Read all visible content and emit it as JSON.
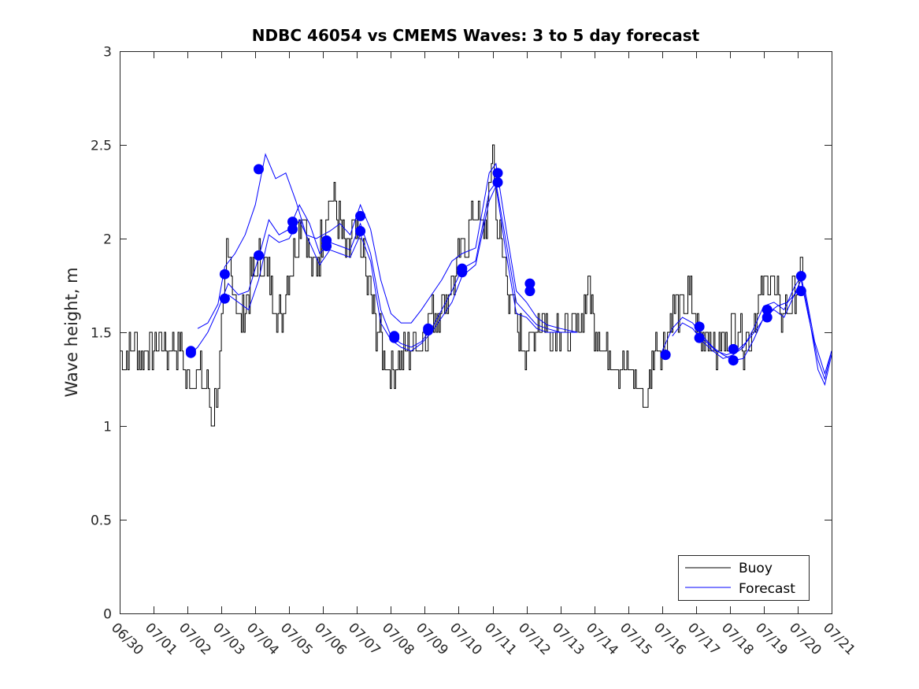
{
  "chart_data": {
    "type": "line",
    "title": "NDBC 46054 vs CMEMS Waves: 3 to 5 day forecast",
    "xlabel": "",
    "ylabel": "Wave height, m",
    "xlim": [
      0,
      21
    ],
    "ylim": [
      0,
      3
    ],
    "x_tick_labels": [
      "06/30",
      "07/01",
      "07/02",
      "07/03",
      "07/04",
      "07/05",
      "07/06",
      "07/07",
      "07/08",
      "07/09",
      "07/10",
      "07/11",
      "07/12",
      "07/13",
      "07/14",
      "07/15",
      "07/16",
      "07/17",
      "07/18",
      "07/19",
      "07/20",
      "07/21"
    ],
    "y_ticks": [
      0,
      0.5,
      1,
      1.5,
      2,
      2.5,
      3
    ],
    "y_tick_labels": [
      "0",
      "0.5",
      "1",
      "1.5",
      "2",
      "2.5",
      "3"
    ],
    "legend": {
      "position": "bottom-right",
      "entries": [
        {
          "label": "Buoy",
          "color": "#000000"
        },
        {
          "label": "Forecast",
          "color": "#0000ff"
        }
      ]
    },
    "grid": false,
    "colors": {
      "buoy": "#000000",
      "forecast": "#0000ff",
      "marker": "#0000ff"
    },
    "buoy_keypoints": [
      [
        0.0,
        1.4
      ],
      [
        0.2,
        1.35
      ],
      [
        0.4,
        1.45
      ],
      [
        0.6,
        1.4
      ],
      [
        0.8,
        1.45
      ],
      [
        1.0,
        1.4
      ],
      [
        1.2,
        1.45
      ],
      [
        1.4,
        1.4
      ],
      [
        1.6,
        1.45
      ],
      [
        1.8,
        1.4
      ],
      [
        1.95,
        1.25
      ],
      [
        2.1,
        1.25
      ],
      [
        2.3,
        1.3
      ],
      [
        2.5,
        1.25
      ],
      [
        2.65,
        1.15
      ],
      [
        2.75,
        1.05
      ],
      [
        2.85,
        1.15
      ],
      [
        2.95,
        1.35
      ],
      [
        3.05,
        1.6
      ],
      [
        3.15,
        1.9
      ],
      [
        3.25,
        1.85
      ],
      [
        3.4,
        1.75
      ],
      [
        3.55,
        1.55
      ],
      [
        3.7,
        1.6
      ],
      [
        3.85,
        1.75
      ],
      [
        4.0,
        1.85
      ],
      [
        4.15,
        1.9
      ],
      [
        4.35,
        1.8
      ],
      [
        4.55,
        1.7
      ],
      [
        4.75,
        1.55
      ],
      [
        4.9,
        1.75
      ],
      [
        5.05,
        1.85
      ],
      [
        5.25,
        2.05
      ],
      [
        5.4,
        2.2
      ],
      [
        5.55,
        1.95
      ],
      [
        5.7,
        1.8
      ],
      [
        5.85,
        1.9
      ],
      [
        6.0,
        2.05
      ],
      [
        6.2,
        2.25
      ],
      [
        6.4,
        2.15
      ],
      [
        6.55,
        2.0
      ],
      [
        6.7,
        1.85
      ],
      [
        6.85,
        2.05
      ],
      [
        7.0,
        2.0
      ],
      [
        7.15,
        1.95
      ],
      [
        7.3,
        1.75
      ],
      [
        7.45,
        1.65
      ],
      [
        7.6,
        1.5
      ],
      [
        7.75,
        1.4
      ],
      [
        7.9,
        1.3
      ],
      [
        8.1,
        1.3
      ],
      [
        8.3,
        1.35
      ],
      [
        8.5,
        1.4
      ],
      [
        8.7,
        1.45
      ],
      [
        8.9,
        1.45
      ],
      [
        9.1,
        1.55
      ],
      [
        9.3,
        1.6
      ],
      [
        9.5,
        1.65
      ],
      [
        9.7,
        1.7
      ],
      [
        9.9,
        1.8
      ],
      [
        10.1,
        1.95
      ],
      [
        10.3,
        2.05
      ],
      [
        10.5,
        2.15
      ],
      [
        10.7,
        2.05
      ],
      [
        10.85,
        2.15
      ],
      [
        11.0,
        2.5
      ],
      [
        11.1,
        2.1
      ],
      [
        11.25,
        1.95
      ],
      [
        11.4,
        1.8
      ],
      [
        11.55,
        1.65
      ],
      [
        11.7,
        1.55
      ],
      [
        11.85,
        1.45
      ],
      [
        12.0,
        1.4
      ],
      [
        12.15,
        1.45
      ],
      [
        12.3,
        1.55
      ],
      [
        12.5,
        1.6
      ],
      [
        12.7,
        1.45
      ],
      [
        12.9,
        1.55
      ],
      [
        13.1,
        1.5
      ],
      [
        13.3,
        1.45
      ],
      [
        13.5,
        1.55
      ],
      [
        13.7,
        1.65
      ],
      [
        13.85,
        1.75
      ],
      [
        14.0,
        1.55
      ],
      [
        14.2,
        1.45
      ],
      [
        14.4,
        1.4
      ],
      [
        14.6,
        1.35
      ],
      [
        14.8,
        1.3
      ],
      [
        15.0,
        1.3
      ],
      [
        15.2,
        1.25
      ],
      [
        15.4,
        1.15
      ],
      [
        15.55,
        1.15
      ],
      [
        15.7,
        1.3
      ],
      [
        15.85,
        1.45
      ],
      [
        16.0,
        1.4
      ],
      [
        16.2,
        1.55
      ],
      [
        16.4,
        1.65
      ],
      [
        16.6,
        1.6
      ],
      [
        16.8,
        1.7
      ],
      [
        17.0,
        1.55
      ],
      [
        17.2,
        1.45
      ],
      [
        17.4,
        1.5
      ],
      [
        17.6,
        1.4
      ],
      [
        17.8,
        1.45
      ],
      [
        18.0,
        1.5
      ],
      [
        18.2,
        1.55
      ],
      [
        18.4,
        1.45
      ],
      [
        18.6,
        1.5
      ],
      [
        18.8,
        1.6
      ],
      [
        19.0,
        1.75
      ],
      [
        19.2,
        1.8
      ],
      [
        19.4,
        1.65
      ],
      [
        19.6,
        1.6
      ],
      [
        19.8,
        1.65
      ],
      [
        20.0,
        1.75
      ],
      [
        20.15,
        1.85
      ],
      [
        20.25,
        1.8
      ]
    ],
    "forecast_series": [
      {
        "points": [
          [
            2.3,
            1.52
          ],
          [
            2.6,
            1.55
          ],
          [
            2.9,
            1.65
          ],
          [
            3.1,
            1.85
          ],
          [
            3.4,
            1.92
          ],
          [
            3.7,
            2.02
          ],
          [
            4.0,
            2.18
          ],
          [
            4.3,
            2.45
          ],
          [
            4.6,
            2.32
          ],
          [
            4.9,
            2.35
          ],
          [
            5.2,
            2.2
          ],
          [
            5.5,
            2.02
          ],
          [
            5.8,
            2.0
          ],
          [
            6.2,
            2.04
          ],
          [
            6.5,
            2.08
          ],
          [
            6.8,
            2.02
          ],
          [
            7.1,
            2.18
          ],
          [
            7.4,
            2.05
          ],
          [
            7.7,
            1.78
          ],
          [
            8.0,
            1.6
          ],
          [
            8.3,
            1.55
          ],
          [
            8.6,
            1.55
          ],
          [
            8.9,
            1.62
          ],
          [
            9.2,
            1.7
          ],
          [
            9.5,
            1.78
          ],
          [
            9.8,
            1.88
          ],
          [
            10.1,
            1.92
          ],
          [
            10.5,
            1.95
          ],
          [
            10.9,
            2.35
          ],
          [
            11.1,
            2.4
          ],
          [
            11.4,
            2.05
          ],
          [
            11.7,
            1.72
          ],
          [
            12.0,
            1.66
          ],
          [
            12.3,
            1.58
          ],
          [
            12.6,
            1.54
          ],
          [
            13.0,
            1.52
          ],
          [
            13.5,
            1.5
          ]
        ]
      },
      {
        "points": [
          [
            2.0,
            1.37
          ],
          [
            2.3,
            1.42
          ],
          [
            2.6,
            1.5
          ],
          [
            2.9,
            1.62
          ],
          [
            3.2,
            1.76
          ],
          [
            3.5,
            1.7
          ],
          [
            3.8,
            1.72
          ],
          [
            4.1,
            1.9
          ],
          [
            4.4,
            2.1
          ],
          [
            4.7,
            2.02
          ],
          [
            5.0,
            2.05
          ],
          [
            5.3,
            2.18
          ],
          [
            5.6,
            2.08
          ],
          [
            5.9,
            1.92
          ],
          [
            6.2,
            1.98
          ],
          [
            6.5,
            1.96
          ],
          [
            6.8,
            1.94
          ],
          [
            7.1,
            2.08
          ],
          [
            7.4,
            1.92
          ],
          [
            7.7,
            1.62
          ],
          [
            8.0,
            1.48
          ],
          [
            8.3,
            1.44
          ],
          [
            8.6,
            1.42
          ],
          [
            8.9,
            1.45
          ],
          [
            9.2,
            1.52
          ],
          [
            9.5,
            1.62
          ],
          [
            9.8,
            1.72
          ],
          [
            10.1,
            1.84
          ],
          [
            10.5,
            1.88
          ],
          [
            10.9,
            2.25
          ],
          [
            11.1,
            2.3
          ],
          [
            11.4,
            1.98
          ],
          [
            11.7,
            1.66
          ],
          [
            12.0,
            1.6
          ],
          [
            12.3,
            1.54
          ],
          [
            12.6,
            1.52
          ],
          [
            13.0,
            1.5
          ],
          [
            13.5,
            1.5
          ]
        ]
      },
      {
        "points": [
          [
            3.2,
            1.7
          ],
          [
            3.5,
            1.66
          ],
          [
            3.8,
            1.62
          ],
          [
            4.1,
            1.78
          ],
          [
            4.4,
            2.02
          ],
          [
            4.7,
            1.98
          ],
          [
            5.0,
            2.0
          ],
          [
            5.3,
            2.1
          ],
          [
            5.6,
            1.98
          ],
          [
            5.9,
            1.86
          ],
          [
            6.2,
            1.94
          ],
          [
            6.5,
            1.92
          ],
          [
            6.8,
            1.9
          ],
          [
            7.1,
            2.02
          ],
          [
            7.4,
            1.88
          ],
          [
            7.7,
            1.55
          ],
          [
            8.0,
            1.46
          ],
          [
            8.3,
            1.42
          ],
          [
            8.6,
            1.4
          ],
          [
            8.9,
            1.44
          ],
          [
            9.2,
            1.5
          ],
          [
            9.5,
            1.58
          ],
          [
            9.8,
            1.66
          ],
          [
            10.1,
            1.8
          ],
          [
            10.5,
            1.86
          ],
          [
            10.9,
            2.2
          ],
          [
            11.1,
            2.28
          ],
          [
            11.4,
            1.92
          ],
          [
            11.7,
            1.6
          ],
          [
            12.0,
            1.58
          ],
          [
            12.3,
            1.52
          ],
          [
            12.6,
            1.5
          ],
          [
            13.0,
            1.5
          ]
        ]
      },
      {
        "points": [
          [
            16.0,
            1.4
          ],
          [
            16.3,
            1.52
          ],
          [
            16.6,
            1.58
          ],
          [
            16.9,
            1.55
          ],
          [
            17.2,
            1.48
          ],
          [
            17.5,
            1.42
          ],
          [
            17.8,
            1.38
          ],
          [
            18.1,
            1.35
          ],
          [
            18.4,
            1.36
          ],
          [
            18.7,
            1.46
          ],
          [
            19.0,
            1.58
          ],
          [
            19.3,
            1.62
          ],
          [
            19.6,
            1.58
          ],
          [
            19.9,
            1.7
          ],
          [
            20.1,
            1.78
          ],
          [
            20.3,
            1.6
          ],
          [
            20.6,
            1.35
          ],
          [
            20.8,
            1.25
          ],
          [
            21.0,
            1.4
          ]
        ]
      },
      {
        "points": [
          [
            16.3,
            1.48
          ],
          [
            16.6,
            1.55
          ],
          [
            16.9,
            1.52
          ],
          [
            17.2,
            1.45
          ],
          [
            17.5,
            1.4
          ],
          [
            17.8,
            1.36
          ],
          [
            18.1,
            1.38
          ],
          [
            18.4,
            1.42
          ],
          [
            18.7,
            1.52
          ],
          [
            19.0,
            1.64
          ],
          [
            19.3,
            1.66
          ],
          [
            19.6,
            1.62
          ],
          [
            19.9,
            1.74
          ],
          [
            20.1,
            1.8
          ],
          [
            20.3,
            1.62
          ],
          [
            20.6,
            1.3
          ],
          [
            20.8,
            1.22
          ],
          [
            21.0,
            1.38
          ]
        ]
      },
      {
        "points": [
          [
            17.0,
            1.5
          ],
          [
            17.3,
            1.45
          ],
          [
            17.6,
            1.4
          ],
          [
            17.9,
            1.38
          ],
          [
            18.2,
            1.4
          ],
          [
            18.5,
            1.45
          ],
          [
            18.8,
            1.52
          ],
          [
            19.1,
            1.6
          ],
          [
            19.4,
            1.64
          ],
          [
            19.7,
            1.66
          ],
          [
            20.0,
            1.72
          ],
          [
            20.2,
            1.74
          ],
          [
            20.5,
            1.45
          ],
          [
            20.8,
            1.28
          ],
          [
            21.0,
            1.4
          ]
        ]
      }
    ],
    "markers": [
      [
        2.1,
        1.39
      ],
      [
        2.1,
        1.4
      ],
      [
        3.1,
        1.81
      ],
      [
        3.1,
        1.68
      ],
      [
        4.1,
        2.37
      ],
      [
        4.1,
        1.91
      ],
      [
        5.1,
        2.09
      ],
      [
        5.1,
        2.05
      ],
      [
        6.1,
        1.99
      ],
      [
        6.1,
        1.96
      ],
      [
        7.1,
        2.12
      ],
      [
        7.1,
        2.04
      ],
      [
        8.1,
        1.48
      ],
      [
        8.1,
        1.47
      ],
      [
        9.1,
        1.52
      ],
      [
        9.1,
        1.51
      ],
      [
        10.1,
        1.84
      ],
      [
        10.1,
        1.82
      ],
      [
        11.15,
        2.35
      ],
      [
        11.15,
        2.3
      ],
      [
        12.1,
        1.76
      ],
      [
        12.1,
        1.72
      ],
      [
        16.1,
        1.38
      ],
      [
        16.1,
        1.38
      ],
      [
        17.1,
        1.53
      ],
      [
        17.1,
        1.47
      ],
      [
        18.1,
        1.41
      ],
      [
        18.1,
        1.35
      ],
      [
        19.1,
        1.62
      ],
      [
        19.1,
        1.58
      ],
      [
        20.1,
        1.8
      ],
      [
        20.1,
        1.72
      ]
    ]
  }
}
